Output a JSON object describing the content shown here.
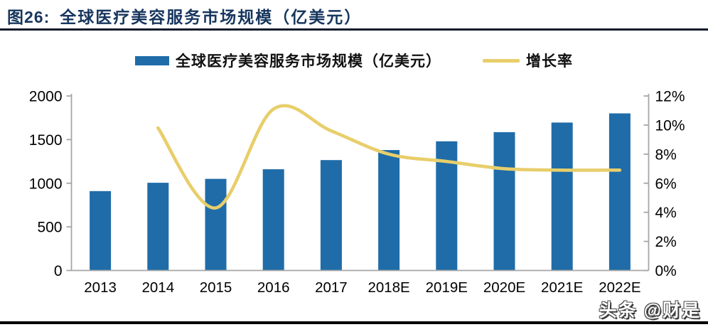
{
  "header": {
    "figure_label": "图26:",
    "title": "全球医疗美容服务市场规模（亿美元）"
  },
  "watermark": {
    "text": "头条 @财是"
  },
  "colors": {
    "bar_blue": "#1F6CA9",
    "line_yellow": "#E8CE6B",
    "title_navy": "#17365E",
    "axis_gray": "#A6A6A6",
    "label_black": "#000000"
  },
  "chart_data": {
    "type": "bar",
    "subtype": "combo-bar-line",
    "title": "全球医疗美容服务市场规模（亿美元）",
    "categories": [
      "2013",
      "2014",
      "2015",
      "2016",
      "2017",
      "2018E",
      "2019E",
      "2020E",
      "2021E",
      "2022E"
    ],
    "series": [
      {
        "name": "全球医疗美容服务市场规模（亿美元）",
        "type": "bar",
        "axis": "left",
        "color": "#1F6CA9",
        "values": [
          910,
          1005,
          1050,
          1160,
          1265,
          1380,
          1480,
          1585,
          1695,
          1800
        ]
      },
      {
        "name": "增长率",
        "type": "line",
        "axis": "right",
        "color": "#E8CE6B",
        "values": [
          null,
          9.8,
          4.3,
          11.1,
          9.6,
          8.0,
          7.5,
          7.0,
          6.9,
          6.9
        ]
      }
    ],
    "left_axis": {
      "min": 0,
      "max": 2000,
      "tick_step": 500,
      "ticks": [
        0,
        500,
        1000,
        1500,
        2000
      ]
    },
    "right_axis": {
      "min": 0,
      "max": 12,
      "tick_step": 2,
      "ticks": [
        0,
        2,
        4,
        6,
        8,
        10,
        12
      ],
      "suffix": "%"
    },
    "grid": false,
    "legend_position": "top-center"
  }
}
